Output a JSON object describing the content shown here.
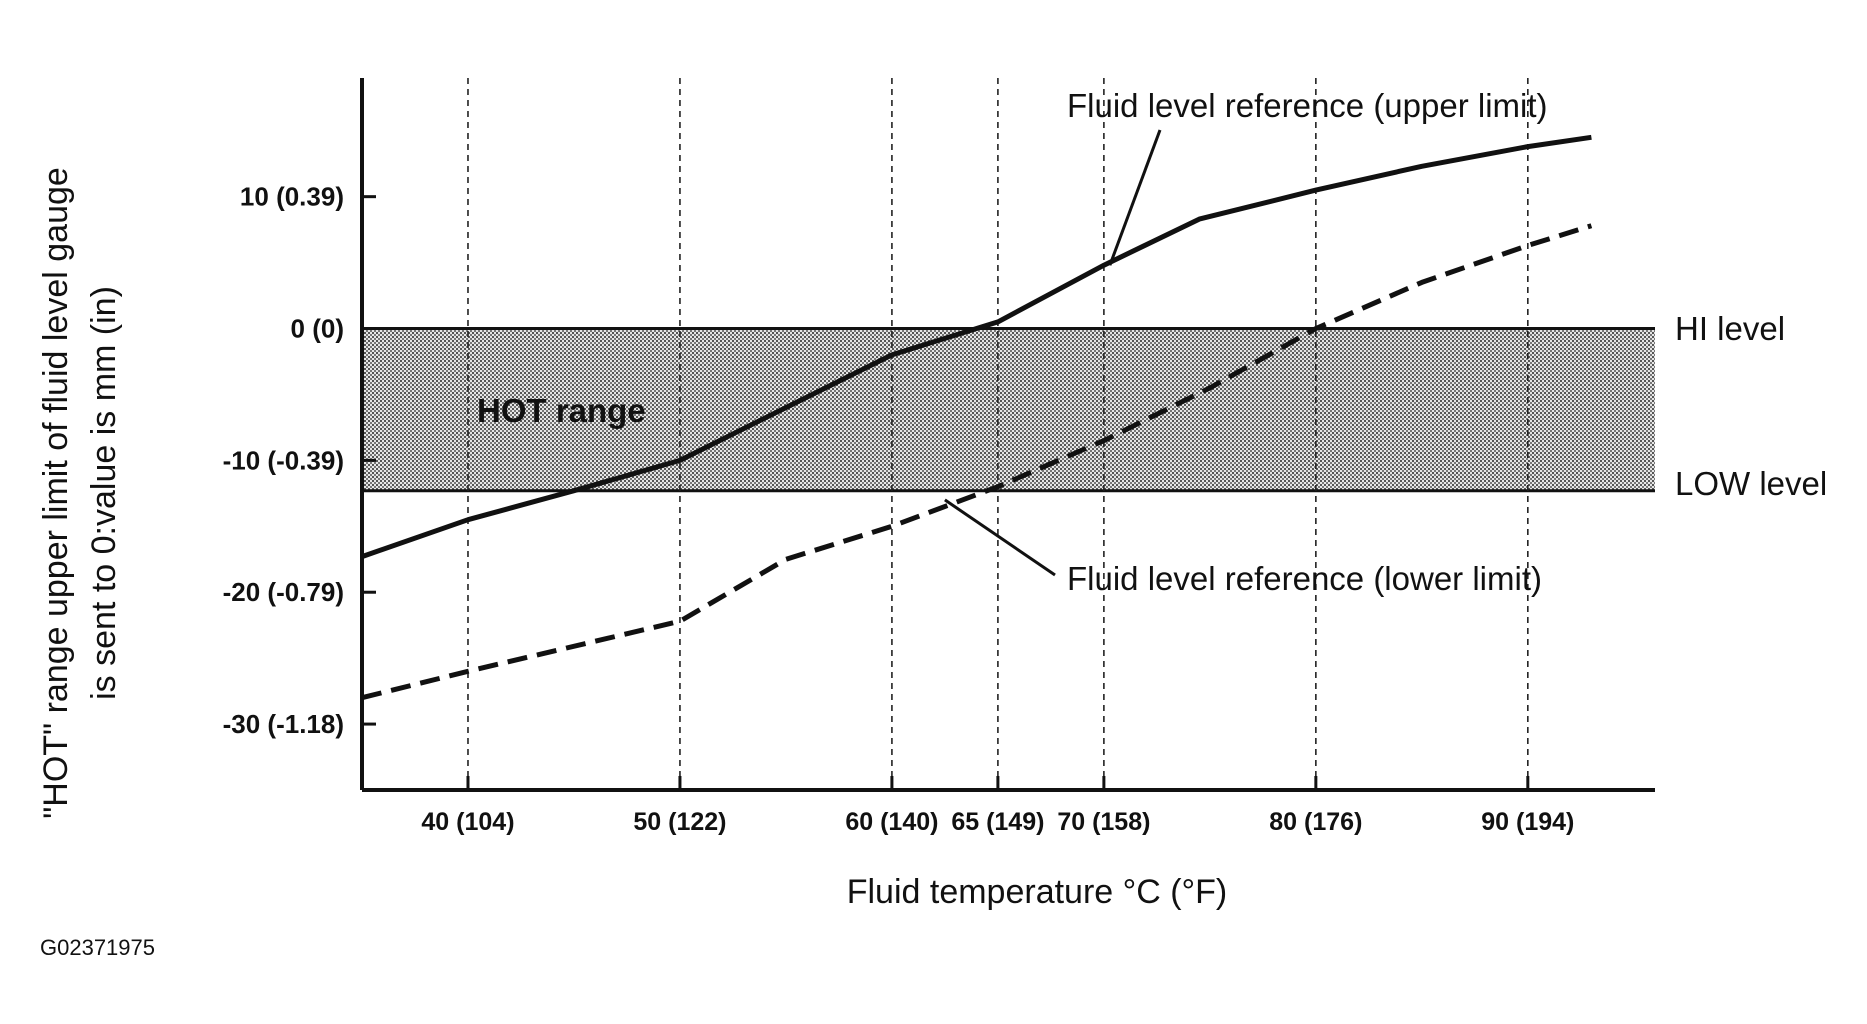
{
  "chart_data": {
    "type": "line",
    "title": "",
    "xlabel": "Fluid temperature °C (°F)",
    "ylabel_line1": "\"HOT\" range upper limit of fluid level gauge",
    "ylabel_line2": "is sent to 0:value is mm (in)",
    "xlim": [
      35,
      96
    ],
    "ylim": [
      -35,
      19
    ],
    "x_ticks": [
      {
        "value": 40,
        "label": "40 (104)"
      },
      {
        "value": 50,
        "label": "50 (122)"
      },
      {
        "value": 60,
        "label": "60 (140)"
      },
      {
        "value": 65,
        "label": "65 (149)"
      },
      {
        "value": 70,
        "label": "70 (158)"
      },
      {
        "value": 80,
        "label": "80 (176)"
      },
      {
        "value": 90,
        "label": "90 (194)"
      }
    ],
    "y_ticks": [
      {
        "value": 10,
        "label": "10 (0.39)"
      },
      {
        "value": 0,
        "label": "0 (0)"
      },
      {
        "value": -10,
        "label": "-10 (-0.39)"
      },
      {
        "value": -20,
        "label": "-20 (-0.79)"
      },
      {
        "value": -30,
        "label": "-30 (-1.18)"
      }
    ],
    "grid": "vertical dashed at x ticks",
    "band": {
      "label": "HOT range",
      "from": -12.3,
      "to": 0,
      "upper_label": "HI level",
      "lower_label": "LOW level"
    },
    "series": [
      {
        "name": "Fluid level reference (upper limit)",
        "style": "solid",
        "x": [
          35,
          40,
          45,
          50,
          55,
          60,
          65,
          70,
          74.5,
          80,
          85,
          90,
          93
        ],
        "y": [
          -17.3,
          -14.5,
          -12.3,
          -10,
          -6,
          -2,
          0.5,
          4.8,
          8.3,
          10.5,
          12.3,
          13.8,
          14.5
        ]
      },
      {
        "name": "Fluid level reference (lower limit)",
        "style": "dashed",
        "x": [
          35,
          40,
          50,
          55,
          60,
          65,
          70,
          75,
          80,
          85,
          90,
          93
        ],
        "y": [
          -28,
          -26,
          -22.2,
          -17.5,
          -15,
          -12,
          -8.5,
          -4.5,
          0,
          3.5,
          6.3,
          7.8
        ]
      }
    ],
    "annotations": [
      {
        "text": "Fluid level reference (upper limit)",
        "points_to": {
          "x": 70,
          "y": 4.8
        }
      },
      {
        "text": "Fluid level reference (lower limit)",
        "points_to": {
          "x": 62.5,
          "y": -13
        }
      }
    ]
  },
  "figure_id": "G02371975",
  "colors": {
    "ink": "#111111",
    "band_fill": "#d4d4d4",
    "background": "#ffffff"
  }
}
